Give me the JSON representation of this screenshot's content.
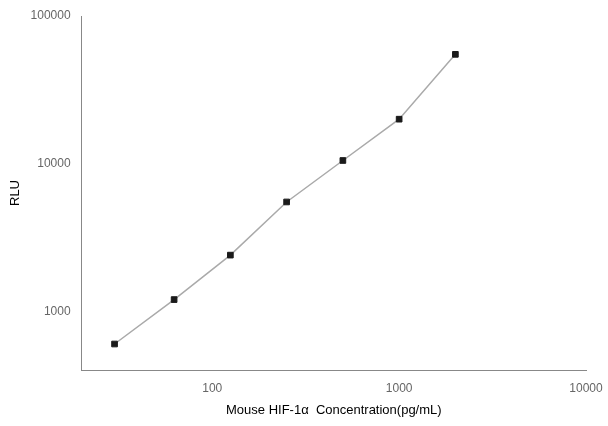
{
  "chart_data": {
    "type": "line",
    "xlabel": "Mouse HIF-1α  Concentration(pg/mL)",
    "ylabel": "RLU",
    "x": [
      30,
      62.5,
      125,
      250,
      500,
      1000,
      2000
    ],
    "series": [
      {
        "type": "line",
        "color": "#aaaaaa",
        "line_style": "solid",
        "values": [
          600,
          1200,
          2400,
          5500,
          10500,
          20000,
          55000
        ]
      },
      {
        "type": "scatter",
        "color": "#1a1a1a",
        "marker": "square",
        "values": [
          600,
          1200,
          2400,
          5500,
          10500,
          20000,
          55000
        ]
      }
    ],
    "xlim": [
      20,
      10000
    ],
    "ylim": [
      400,
      100000
    ],
    "xticks": [
      100,
      1000,
      10000
    ],
    "yticks": [
      1000,
      10000,
      100000
    ],
    "log": true,
    "grid": false
  }
}
